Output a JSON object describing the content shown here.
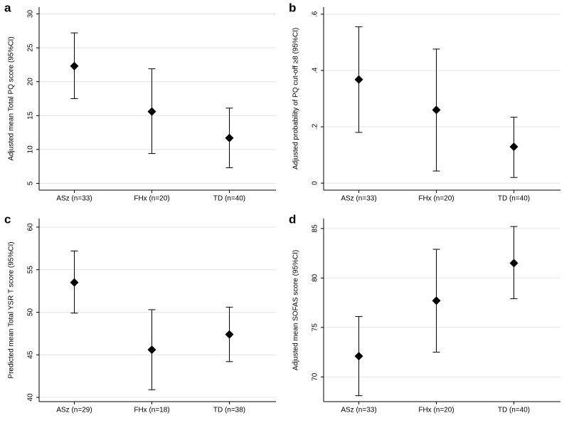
{
  "chart_data": [
    {
      "type": "errorbar",
      "label": "a",
      "ylabel": "Adjusted mean Total PQ score (95%CI)",
      "categories": [
        "ASz (n=33)",
        "FHx (n=20)",
        "TD (n=40)"
      ],
      "values": [
        22.3,
        15.6,
        11.7
      ],
      "lower": [
        17.5,
        9.4,
        7.3
      ],
      "upper": [
        27.2,
        21.9,
        16.1
      ],
      "color": "#000000",
      "ylim": [
        4,
        31
      ],
      "yticks": [
        5,
        10,
        15,
        20,
        25,
        30
      ],
      "grid": true
    },
    {
      "type": "errorbar",
      "label": "b",
      "ylabel": "Adjusted probability of PQ cut-off ≥8 (95%CI)",
      "categories": [
        "ASz (n=33)",
        "FHx (n=20)",
        "TD (n=40)"
      ],
      "values": [
        0.368,
        0.26,
        0.129
      ],
      "lower": [
        0.18,
        0.043,
        0.02
      ],
      "upper": [
        0.555,
        0.476,
        0.234
      ],
      "color": "#000000",
      "ylim": [
        -0.025,
        0.625
      ],
      "yticks": [
        0,
        {
          "value": 0.2,
          "label": ".2"
        },
        {
          "value": 0.4,
          "label": ".4"
        },
        {
          "value": 0.6,
          "label": ".6"
        }
      ],
      "grid": true
    },
    {
      "type": "errorbar",
      "label": "c",
      "ylabel": "Predicted mean Total YSR T score (95%CI)",
      "categories": [
        "ASz (n=29)",
        "FHx (n=18)",
        "TD (n=38)"
      ],
      "values": [
        53.5,
        45.6,
        47.4
      ],
      "lower": [
        49.9,
        40.9,
        44.2
      ],
      "upper": [
        57.2,
        50.3,
        50.6
      ],
      "color": "#000000",
      "ylim": [
        39.5,
        61
      ],
      "yticks": [
        40,
        45,
        50,
        55,
        60
      ],
      "grid": true
    },
    {
      "type": "errorbar",
      "label": "d",
      "ylabel": "Adjusted mean SOFAS score (95%CI)",
      "categories": [
        "ASz (n=33)",
        "FHx (n=20)",
        "TD (n=40)"
      ],
      "values": [
        72.1,
        77.7,
        81.5
      ],
      "lower": [
        68.1,
        72.5,
        77.9
      ],
      "upper": [
        76.1,
        82.9,
        85.2
      ],
      "color": "#000000",
      "ylim": [
        67.5,
        86
      ],
      "yticks": [
        70,
        75,
        80,
        85
      ],
      "grid": true
    }
  ]
}
